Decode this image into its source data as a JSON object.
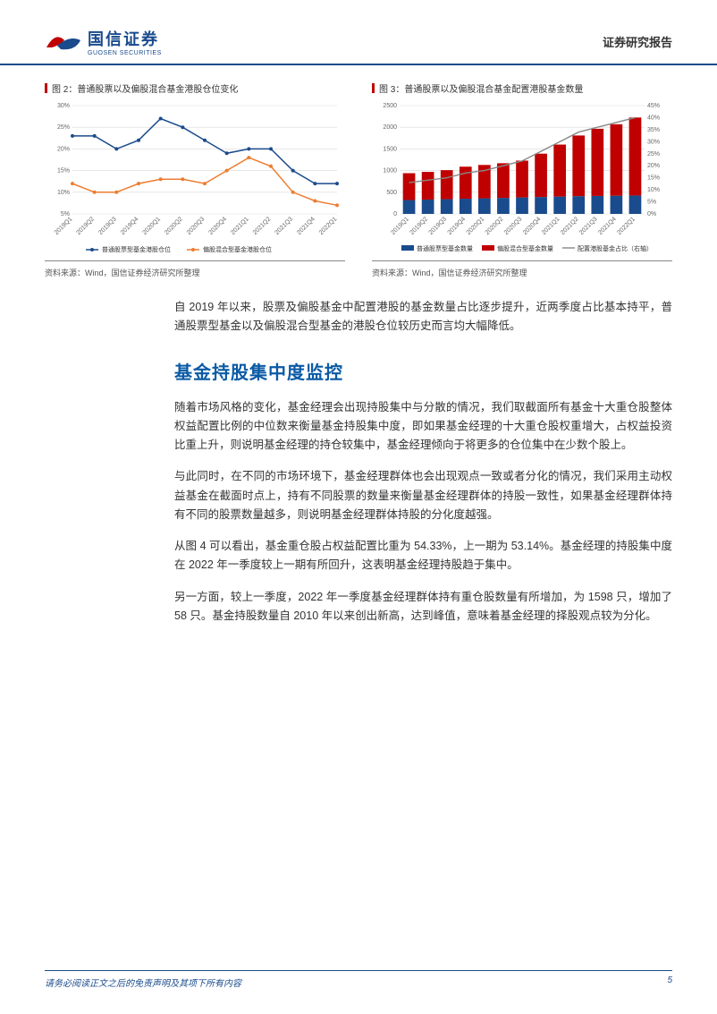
{
  "header": {
    "logo_cn": "国信证券",
    "logo_en": "GUOSEN SECURITIES",
    "right": "证券研究报告"
  },
  "chart2": {
    "type": "line",
    "title": "图 2：普通股票以及偏股混合基金港股仓位变化",
    "categories": [
      "2019Q1",
      "2019Q2",
      "2019Q3",
      "2019Q4",
      "2020Q1",
      "2020Q2",
      "2020Q3",
      "2020Q4",
      "2021Q1",
      "2021Q2",
      "2021Q3",
      "2021Q4",
      "2022Q1"
    ],
    "series": [
      {
        "name": "普通股票型基金港股仓位",
        "color": "#1a4b8c",
        "values": [
          23,
          23,
          20,
          22,
          27,
          25,
          22,
          19,
          20,
          20,
          15,
          12,
          12
        ]
      },
      {
        "name": "偏股混合型基金港股仓位",
        "color": "#ed7d31",
        "values": [
          12,
          10,
          10,
          12,
          13,
          13,
          12,
          15,
          18,
          16,
          10,
          8,
          7
        ]
      }
    ],
    "ylim": [
      5,
      30
    ],
    "ytick_step": 5,
    "y_suffix": "%",
    "background_color": "#ffffff",
    "grid_color": "#d9d9d9",
    "source_label": "资料来源：Wind，国信证券经济研究所整理"
  },
  "chart3": {
    "type": "bar-line-dual-axis",
    "title": "图 3：普通股票以及偏股混合基金配置港股基金数量",
    "categories": [
      "2019Q1",
      "2019Q2",
      "2019Q3",
      "2019Q4",
      "2020Q1",
      "2020Q2",
      "2020Q3",
      "2020Q4",
      "2021Q1",
      "2021Q2",
      "2021Q3",
      "2021Q4",
      "2022Q1"
    ],
    "bar_series": [
      {
        "name": "普通股票型基金数量",
        "color": "#1a4b8c",
        "values": [
          320,
          330,
          340,
          350,
          360,
          370,
          380,
          390,
          400,
          410,
          415,
          420,
          425
        ]
      },
      {
        "name": "偏股混合型基金数量",
        "color": "#c00000",
        "values": [
          620,
          640,
          670,
          740,
          770,
          800,
          850,
          1000,
          1200,
          1400,
          1550,
          1650,
          1800
        ]
      }
    ],
    "line_series": {
      "name": "配置港股基金占比（右轴）",
      "color": "#888888",
      "values": [
        13,
        14,
        15,
        17,
        18,
        20,
        22,
        26,
        30,
        34,
        36,
        38,
        40
      ]
    },
    "ylim_left": [
      0,
      2500
    ],
    "ytick_step_left": 500,
    "ylim_right": [
      0,
      45
    ],
    "ytick_step_right": 5,
    "y2_suffix": "%",
    "bar_width": 0.65,
    "background_color": "#ffffff",
    "grid_color": "#d9d9d9",
    "source_label": "资料来源：Wind，国信证券经济研究所整理"
  },
  "body": {
    "p1": "自 2019 年以来，股票及偏股基金中配置港股的基金数量占比逐步提升，近两季度占比基本持平，普通股票型基金以及偏股混合型基金的港股仓位较历史而言均大幅降低。",
    "h1": "基金持股集中度监控",
    "p2": "随着市场风格的变化，基金经理会出现持股集中与分散的情况，我们取截面所有基金十大重仓股整体权益配置比例的中位数来衡量基金持股集中度，即如果基金经理的十大重仓股权重增大，占权益投资比重上升，则说明基金经理的持仓较集中，基金经理倾向于将更多的仓位集中在少数个股上。",
    "p3": "与此同时，在不同的市场环境下，基金经理群体也会出现观点一致或者分化的情况，我们采用主动权益基金在截面时点上，持有不同股票的数量来衡量基金经理群体的持股一致性，如果基金经理群体持有不同的股票数量越多，则说明基金经理群体持股的分化度越强。",
    "p4": "从图 4 可以看出，基金重仓股占权益配置比重为 54.33%，上一期为 53.14%。基金经理的持股集中度在 2022 年一季度较上一期有所回升，这表明基金经理持股趋于集中。",
    "p5": "另一方面，较上一季度，2022 年一季度基金经理群体持有重仓股数量有所增加，为 1598 只，增加了 58 只。基金持股数量自 2010 年以来创出新高，达到峰值，意味着基金经理的择股观点较为分化。"
  },
  "footer": {
    "left": "请务必阅读正文之后的免责声明及其项下所有内容",
    "page": "5"
  }
}
